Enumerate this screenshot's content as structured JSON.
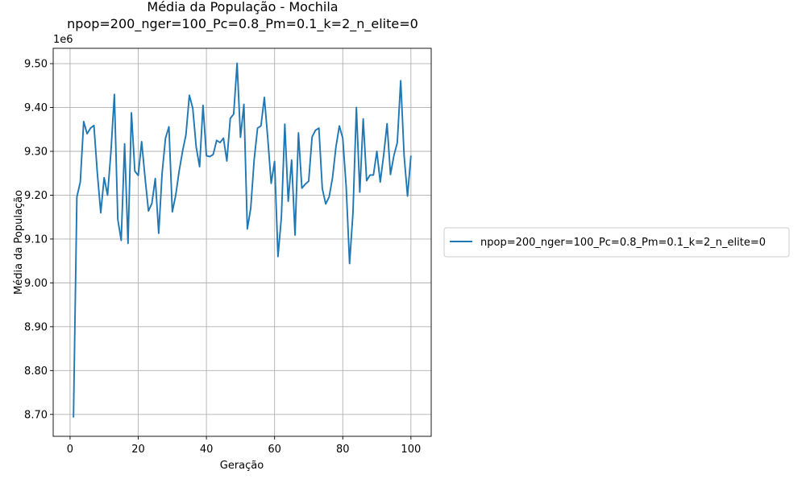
{
  "chart_data": {
    "type": "line",
    "title": "Média da População - Mochila",
    "subtitle": "npop=200_nger=100_Pc=0.8_Pm=0.1_k=2_n_elite=0",
    "xlabel": "Geração",
    "ylabel": "Média da População",
    "y_scale_label": "1e6",
    "xlim": [
      -4.95,
      105.95
    ],
    "ylim": [
      8.65,
      9.535
    ],
    "x_ticks": [
      0,
      20,
      40,
      60,
      80,
      100
    ],
    "x_tick_labels": [
      "0",
      "20",
      "40",
      "60",
      "80",
      "100"
    ],
    "y_ticks": [
      8.7,
      8.8,
      8.9,
      9.0,
      9.1,
      9.2,
      9.3,
      9.4,
      9.5
    ],
    "y_tick_labels": [
      "8.70",
      "8.80",
      "8.90",
      "9.00",
      "9.10",
      "9.20",
      "9.30",
      "9.40",
      "9.50"
    ],
    "grid": true,
    "legend_placement": "right outside",
    "colors": {
      "series": "#1f77b4",
      "grid": "#b0b0b0"
    },
    "series": [
      {
        "name": "npop=200_nger=100_Pc=0.8_Pm=0.1_k=2_n_elite=0",
        "x": [
          1,
          2,
          3,
          4,
          5,
          6,
          7,
          8,
          9,
          10,
          11,
          12,
          13,
          14,
          15,
          16,
          17,
          18,
          19,
          20,
          21,
          22,
          23,
          24,
          25,
          26,
          27,
          28,
          29,
          30,
          31,
          32,
          33,
          34,
          35,
          36,
          37,
          38,
          39,
          40,
          41,
          42,
          43,
          44,
          45,
          46,
          47,
          48,
          49,
          50,
          51,
          52,
          53,
          54,
          55,
          56,
          57,
          58,
          59,
          60,
          61,
          62,
          63,
          64,
          65,
          66,
          67,
          68,
          69,
          70,
          71,
          72,
          73,
          74,
          75,
          76,
          77,
          78,
          79,
          80,
          81,
          82,
          83,
          84,
          85,
          86,
          87,
          88,
          89,
          90,
          91,
          92,
          93,
          94,
          95,
          96,
          97,
          98,
          99,
          100
        ],
        "values": [
          8.693,
          9.196,
          9.23,
          9.368,
          9.34,
          9.353,
          9.359,
          9.25,
          9.16,
          9.24,
          9.2,
          9.3,
          9.43,
          9.145,
          9.097,
          9.317,
          9.09,
          9.388,
          9.255,
          9.245,
          9.322,
          9.24,
          9.164,
          9.181,
          9.238,
          9.113,
          9.25,
          9.33,
          9.356,
          9.162,
          9.2,
          9.255,
          9.3,
          9.338,
          9.428,
          9.398,
          9.31,
          9.265,
          9.405,
          9.29,
          9.288,
          9.293,
          9.325,
          9.32,
          9.33,
          9.278,
          9.375,
          9.385,
          9.501,
          9.332,
          9.407,
          9.123,
          9.17,
          9.28,
          9.353,
          9.358,
          9.423,
          9.33,
          9.227,
          9.277,
          9.06,
          9.15,
          9.362,
          9.186,
          9.28,
          9.109,
          9.342,
          9.216,
          9.225,
          9.232,
          9.333,
          9.348,
          9.353,
          9.215,
          9.18,
          9.196,
          9.24,
          9.31,
          9.358,
          9.33,
          9.22,
          9.044,
          9.16,
          9.4,
          9.207,
          9.374,
          9.233,
          9.246,
          9.246,
          9.3,
          9.23,
          9.291,
          9.363,
          9.247,
          9.29,
          9.32,
          9.461,
          9.29,
          9.198,
          9.29
        ]
      }
    ]
  }
}
